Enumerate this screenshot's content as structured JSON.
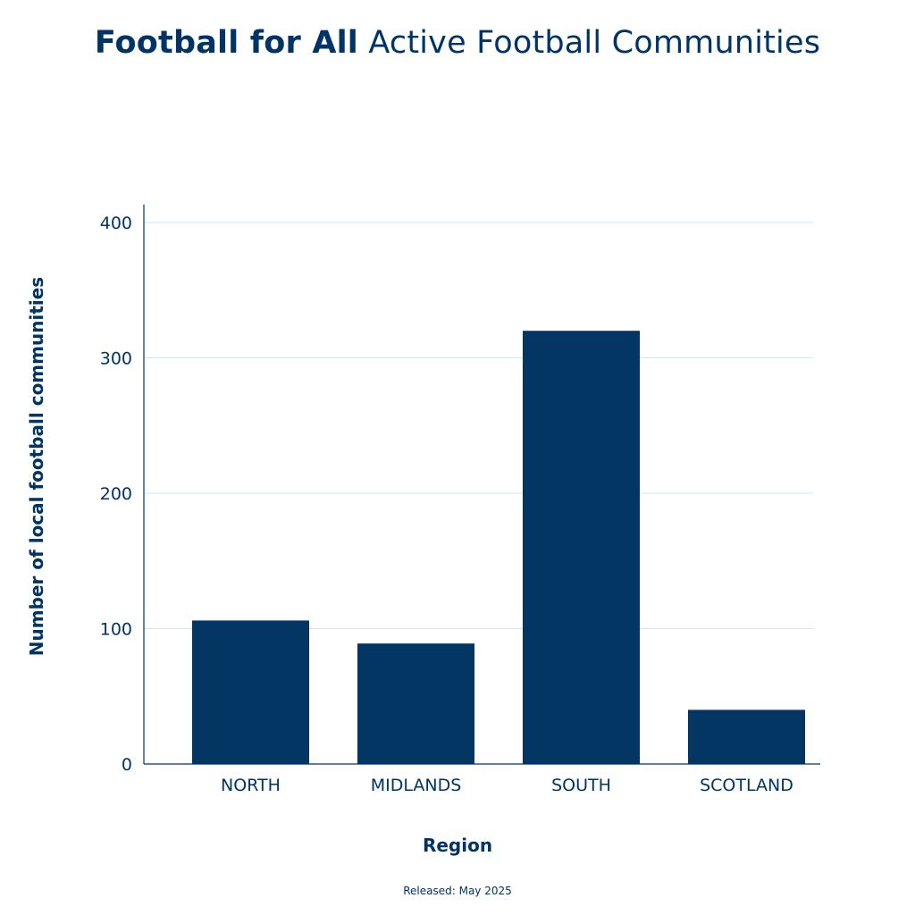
{
  "title": {
    "bold": "Football for All",
    "rest": "Active Football Communities"
  },
  "footnote": "Released: May 2025",
  "colors": {
    "bar": "#033663",
    "grid": "#cfe6f5",
    "axis": "#003366",
    "text": "#003366"
  },
  "chart_data": {
    "type": "bar",
    "categories": [
      "NORTH",
      "MIDLANDS",
      "SOUTH",
      "SCOTLAND"
    ],
    "values": [
      106,
      89,
      320,
      40
    ],
    "xlabel": "Region",
    "ylabel": "Number of local football communities",
    "ylim": [
      0,
      400
    ],
    "yticks": [
      0,
      100,
      200,
      300,
      400
    ],
    "grid": true,
    "legend": "none"
  }
}
